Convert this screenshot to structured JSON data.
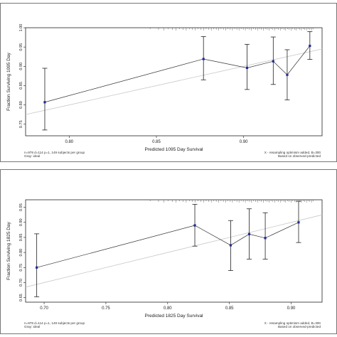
{
  "chart_data": [
    {
      "type": "line",
      "xlabel": "Predicted 1095 Day Survival",
      "ylabel": "Fraction Surviving 1095 Day",
      "xlim": [
        0.775,
        0.945
      ],
      "ylim": [
        0.72,
        1.0
      ],
      "x_ticks": [
        0.8,
        0.85,
        0.9
      ],
      "x_tick_labels": [
        "0.80",
        "0.85",
        "0.90"
      ],
      "y_ticks": [
        0.75,
        0.8,
        0.85,
        0.9,
        0.95,
        1.0
      ],
      "y_tick_labels": [
        "0.75",
        "0.80",
        "0.85",
        "0.90",
        "0.95",
        "1.00"
      ],
      "ideal_line": [
        [
          0.775,
          0.775
        ],
        [
          0.945,
          0.945
        ]
      ],
      "points": [
        {
          "x": 0.786,
          "y": 0.807,
          "lo": 0.735,
          "hi": 0.895
        },
        {
          "x": 0.877,
          "y": 0.919,
          "lo": 0.865,
          "hi": 0.977
        },
        {
          "x": 0.902,
          "y": 0.896,
          "lo": 0.84,
          "hi": 0.957
        },
        {
          "x": 0.917,
          "y": 0.913,
          "lo": 0.853,
          "hi": 0.976
        },
        {
          "x": 0.925,
          "y": 0.878,
          "lo": 0.813,
          "hi": 0.943
        },
        {
          "x": 0.938,
          "y": 0.953,
          "lo": 0.918,
          "hi": 0.99
        }
      ],
      "footnote_left": [
        "n=978 d=114 p=1, 149 subjects per group",
        "Gray: ideal"
      ],
      "footnote_right": [
        "X - resampling optimism added, B=300",
        "Based on observed-predicted"
      ]
    },
    {
      "type": "line",
      "xlabel": "Predicted 1825 Day Survival",
      "ylabel": "Fraction Surviving 1825 Day",
      "xlim": [
        0.685,
        0.925
      ],
      "ylim": [
        0.635,
        0.975
      ],
      "x_ticks": [
        0.7,
        0.75,
        0.8,
        0.85,
        0.9
      ],
      "x_tick_labels": [
        "0.70",
        "0.75",
        "0.80",
        "0.85",
        "0.90"
      ],
      "y_ticks": [
        0.65,
        0.7,
        0.75,
        0.8,
        0.85,
        0.9,
        0.95
      ],
      "y_tick_labels": [
        "0.65",
        "0.70",
        "0.75",
        "0.80",
        "0.85",
        "0.90",
        "0.95"
      ],
      "ideal_line": [
        [
          0.685,
          0.685
        ],
        [
          0.925,
          0.925
        ]
      ],
      "points": [
        {
          "x": 0.694,
          "y": 0.75,
          "lo": 0.653,
          "hi": 0.862
        },
        {
          "x": 0.822,
          "y": 0.89,
          "lo": 0.821,
          "hi": 0.96
        },
        {
          "x": 0.851,
          "y": 0.824,
          "lo": 0.74,
          "hi": 0.906
        },
        {
          "x": 0.866,
          "y": 0.861,
          "lo": 0.778,
          "hi": 0.945
        },
        {
          "x": 0.879,
          "y": 0.848,
          "lo": 0.778,
          "hi": 0.932
        },
        {
          "x": 0.906,
          "y": 0.9,
          "lo": 0.833,
          "hi": 0.97
        }
      ],
      "footnote_left": [
        "n=978 d=114 p=1, 149 subjects per group",
        "Gray: ideal"
      ],
      "footnote_right": [
        "X - resampling optimism added, B=300",
        "Based on observed-predicted"
      ]
    }
  ]
}
